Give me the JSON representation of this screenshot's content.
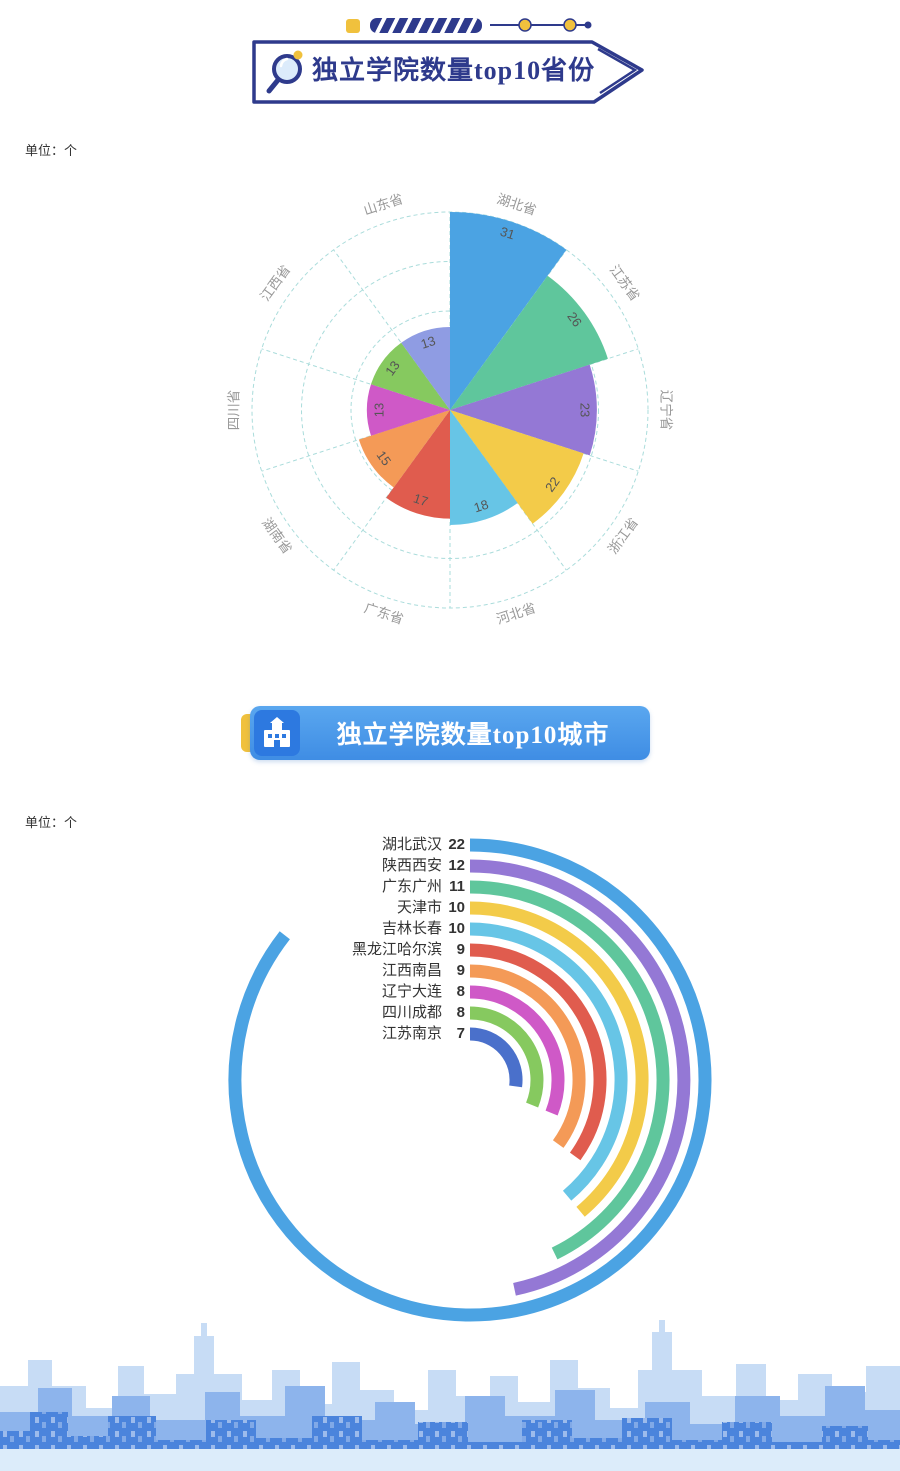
{
  "chart_data": [
    {
      "type": "rose",
      "title": "独立学院数量top10省份",
      "unit_label": "单位：个",
      "categories": [
        "湖北省",
        "江苏省",
        "辽宁省",
        "浙江省",
        "河北省",
        "广东省",
        "湖南省",
        "四川省",
        "江西省",
        "山东省"
      ],
      "values": [
        31,
        26,
        23,
        22,
        18,
        17,
        15,
        13,
        13,
        13
      ],
      "colors": [
        "#4ba3e3",
        "#5fc69c",
        "#9478d5",
        "#f3cb49",
        "#67c5e6",
        "#e05c4e",
        "#f49a57",
        "#cf59c7",
        "#86c95f",
        "#8f9ce3"
      ],
      "axis_max": 31,
      "grid": {
        "rings": 4,
        "color": "#aadcdb",
        "style": "dashed"
      },
      "start_angle": "top",
      "direction": "clockwise",
      "category_label_color": "#999999",
      "value_label_color": "#555555"
    },
    {
      "type": "radial_bar",
      "title": "独立学院数量top10城市",
      "unit_label": "单位：个",
      "categories": [
        "湖北武汉",
        "陕西西安",
        "广东广州",
        "天津市",
        "吉林长春",
        "黑龙江哈尔滨",
        "江西南昌",
        "辽宁大连",
        "四川成都",
        "江苏南京"
      ],
      "values": [
        22,
        12,
        11,
        10,
        10,
        9,
        9,
        8,
        8,
        7
      ],
      "colors": [
        "#4ba3e3",
        "#9478d5",
        "#5fc69c",
        "#f3cb49",
        "#67c5e6",
        "#e05c4e",
        "#f49a57",
        "#cf59c7",
        "#86c95f",
        "#4a70cb"
      ],
      "degrees_per_unit": 14,
      "start_angle": "top",
      "direction": "clockwise",
      "label_color": "#333333"
    }
  ],
  "theme": {
    "header_navy": "#2e3a8c",
    "header_blue": "#4a96e8",
    "accent_yellow": "#f0c13d",
    "skyline_back": "#c7dcf5",
    "skyline_mid": "#8db4ec",
    "skyline_front": "#4b84dc",
    "skyline_strip": "#dcecfa"
  }
}
